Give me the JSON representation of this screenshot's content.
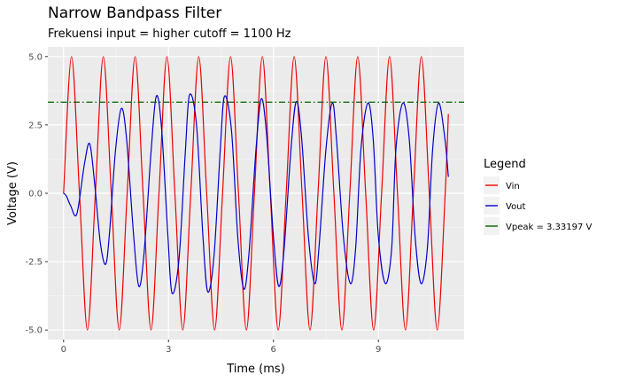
{
  "chart_data": {
    "type": "line",
    "title": "Narrow Bandpass Filter",
    "subtitle": "Frekuensi input = higher cutoff = 1100 Hz",
    "xlabel": "Time (ms)",
    "ylabel": "Voltage (V)",
    "xlim": [
      -0.45,
      11.45
    ],
    "ylim": [
      -5.35,
      5.35
    ],
    "x_ticks": [
      0,
      3,
      6,
      9
    ],
    "x_tick_labels": [
      "0",
      "3",
      "6",
      "9"
    ],
    "y_ticks": [
      -5.0,
      -2.5,
      0.0,
      2.5,
      5.0
    ],
    "y_tick_labels": [
      "-5.0",
      "-2.5",
      "0.0",
      "2.5",
      "5.0"
    ],
    "grid": true,
    "legend": {
      "title": "Legend",
      "position": "right",
      "entries": [
        {
          "label": "Vin",
          "color": "#ee0000"
        },
        {
          "label": "Vout",
          "color": "#0000cc"
        },
        {
          "label": "Vpeak =  3.33197  V",
          "color": "#006400"
        }
      ]
    },
    "series": [
      {
        "name": "Vin",
        "color": "#ee0000",
        "style": "solid",
        "x": [
          0.0,
          0.227,
          0.455,
          0.682,
          0.909,
          1.136,
          1.364,
          1.591,
          1.818,
          2.045,
          2.273,
          2.5,
          2.727,
          2.955,
          3.182,
          3.409,
          3.636,
          3.864,
          4.091,
          4.318,
          4.545,
          4.773,
          5.0,
          5.227,
          5.455,
          5.682,
          5.909,
          6.136,
          6.364,
          6.591,
          6.818,
          7.045,
          7.273,
          7.5,
          7.727,
          7.955,
          8.182,
          8.409,
          8.636,
          8.864,
          9.091,
          9.318,
          9.545,
          9.773,
          10.0,
          10.227,
          10.455,
          10.682,
          10.909,
          11.0
        ],
        "y": [
          0.0,
          5.0,
          0.0,
          -5.0,
          0.0,
          5.0,
          0.0,
          -5.0,
          0.0,
          5.0,
          0.0,
          -5.0,
          0.0,
          5.0,
          0.0,
          -5.0,
          0.0,
          5.0,
          0.0,
          -5.0,
          0.0,
          5.0,
          0.0,
          -5.0,
          0.0,
          5.0,
          0.0,
          -5.0,
          0.0,
          5.0,
          0.0,
          -5.0,
          0.0,
          5.0,
          0.0,
          -5.0,
          0.0,
          5.0,
          0.0,
          -5.0,
          0.0,
          5.0,
          0.0,
          -5.0,
          0.0,
          5.0,
          0.0,
          -5.0,
          0.0,
          2.9
        ]
      },
      {
        "name": "Vout",
        "color": "#0000cc",
        "style": "solid",
        "x": [
          0.0,
          0.08,
          0.2,
          0.38,
          0.6,
          0.75,
          0.9,
          1.05,
          1.2,
          1.31,
          1.48,
          1.65,
          1.8,
          2.0,
          2.15,
          2.3,
          2.5,
          2.65,
          2.8,
          2.98,
          3.1,
          3.3,
          3.48,
          3.6,
          3.8,
          3.98,
          4.12,
          4.3,
          4.48,
          4.6,
          4.8,
          4.98,
          5.15,
          5.3,
          5.5,
          5.65,
          5.8,
          6.0,
          6.15,
          6.3,
          6.5,
          6.65,
          6.8,
          7.0,
          7.18,
          7.3,
          7.5,
          7.68,
          7.8,
          8.0,
          8.2,
          8.35,
          8.5,
          8.7,
          8.85,
          9.0,
          9.2,
          9.38,
          9.5,
          9.7,
          9.88,
          10.05,
          10.22,
          10.4,
          10.55,
          10.72,
          10.9,
          11.0
        ],
        "y": [
          0.0,
          -0.1,
          -0.45,
          -0.75,
          1.1,
          1.8,
          0.2,
          -1.8,
          -2.6,
          -1.5,
          1.5,
          3.1,
          2.0,
          -1.5,
          -3.4,
          -2.2,
          1.5,
          3.55,
          2.4,
          -1.5,
          -3.65,
          -2.4,
          1.5,
          3.6,
          2.5,
          -1.5,
          -3.6,
          -2.3,
          1.6,
          3.55,
          2.3,
          -1.6,
          -3.5,
          -2.2,
          1.6,
          3.45,
          2.2,
          -1.6,
          -3.4,
          -2.1,
          1.6,
          3.35,
          2.1,
          -1.6,
          -3.3,
          -2.0,
          1.6,
          3.3,
          2.0,
          -1.6,
          -3.3,
          -2.0,
          1.6,
          3.3,
          2.0,
          -1.6,
          -3.3,
          -2.0,
          1.6,
          3.3,
          2.0,
          -1.6,
          -3.3,
          -2.0,
          1.6,
          3.3,
          2.0,
          0.6
        ]
      },
      {
        "name": "Vpeak =  3.33197  V",
        "color": "#006400",
        "style": "dashdot",
        "x": [
          -0.45,
          11.45
        ],
        "y": [
          3.33197,
          3.33197
        ]
      }
    ]
  }
}
